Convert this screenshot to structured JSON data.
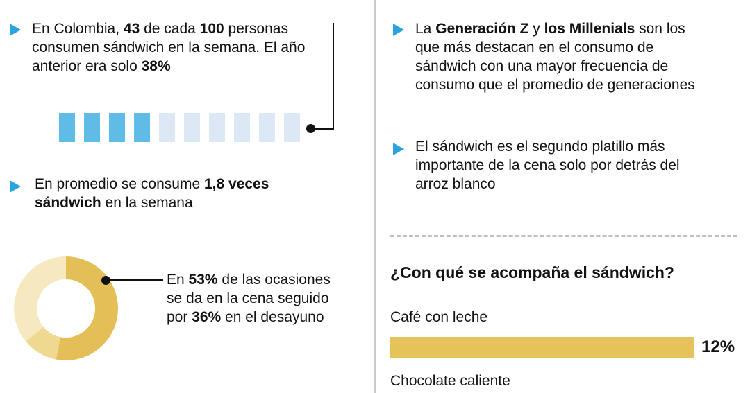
{
  "colors": {
    "bullet_blue": "#2BA3DC",
    "waffle_filled": "#5FBCE6",
    "waffle_empty": "#DCE8F5",
    "donut_gold": "#E4BE56",
    "donut_gold_light": "#EFD88F",
    "donut_cream": "#F6E9C0",
    "bar_gold": "#E6C25A",
    "text": "#121212",
    "divider": "#C9C9C9"
  },
  "left": {
    "stat1_parts": [
      {
        "t": "En Colombia, "
      },
      {
        "t": "43",
        "b": 1
      },
      {
        "t": " de cada "
      },
      {
        "t": "100",
        "b": 1
      },
      {
        "t": " personas\nconsumen sándwich en la semana. El año\nanterior era solo "
      },
      {
        "t": "38%",
        "b": 1
      }
    ],
    "stat2_parts": [
      {
        "t": "En promedio se consume "
      },
      {
        "t": "1,8 veces\nsándwich",
        "b": 1
      },
      {
        "t": " en la semana"
      }
    ],
    "donut_callout_parts": [
      {
        "t": "En "
      },
      {
        "t": "53%",
        "b": 1
      },
      {
        "t": " de las ocasiones\nse da en la cena seguido\npor "
      },
      {
        "t": "36%",
        "b": 1
      },
      {
        "t": " en el desayuno"
      }
    ]
  },
  "right": {
    "bullet1_parts": [
      {
        "t": "La "
      },
      {
        "t": "Generación Z",
        "b": 1
      },
      {
        "t": " y "
      },
      {
        "t": "los Millenials",
        "b": 1
      },
      {
        "t": " son los\nque más destacan en el consumo de\nsándwich con una mayor frecuencia de\nconsumo que el promedio de generaciones"
      }
    ],
    "bullet2_parts": [
      {
        "t": "El sándwich es el segundo platillo más\nimportante de la cena solo por detrás del\narroz blanco"
      }
    ]
  },
  "chart_data": [
    {
      "id": "waffle",
      "type": "bar",
      "units_total": 10,
      "units_highlighted": 4,
      "represents": "43 de cada 100 personas consumen sándwich en la semana"
    },
    {
      "id": "donut",
      "type": "pie",
      "segments": [
        {
          "label": "cena",
          "value": 53,
          "color": "#E4BE56"
        },
        {
          "label": "",
          "value": 11,
          "color": "#EFD88F"
        },
        {
          "label": "desayuno",
          "value": 36,
          "color": "#F6E9C0"
        }
      ],
      "annotation": "En 53% de las ocasiones se da en la cena seguido por 36% en el desayuno"
    },
    {
      "id": "acompanantes",
      "type": "bar",
      "title": "¿Con qué se acompaña el sándwich?",
      "categories": [
        "Café con leche",
        "Chocolate caliente"
      ],
      "values": [
        12,
        null
      ],
      "value_labels": [
        "12%",
        ""
      ]
    }
  ]
}
